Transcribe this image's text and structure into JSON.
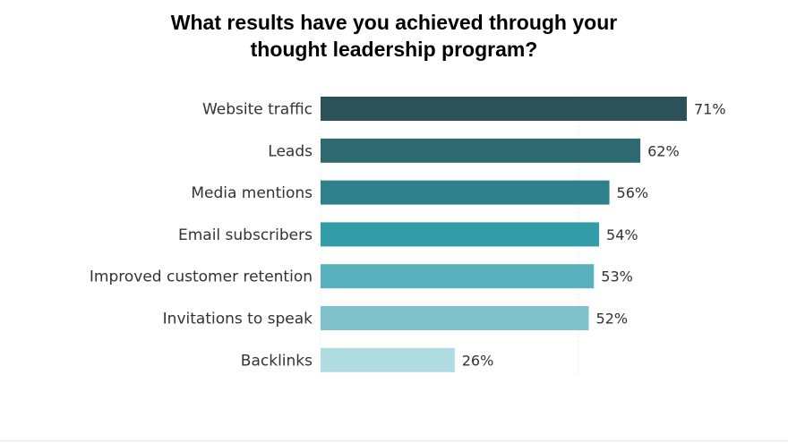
{
  "chart_data": {
    "type": "bar",
    "orientation": "horizontal",
    "title_lines": [
      "What results have you achieved through your",
      "thought leadership program?"
    ],
    "categories": [
      "Website traffic",
      "Leads",
      "Media mentions",
      "Email subscribers",
      "Improved customer retention",
      "Invitations to speak",
      "Backlinks"
    ],
    "values": [
      71,
      62,
      56,
      54,
      53,
      52,
      26
    ],
    "value_labels": [
      "71%",
      "62%",
      "56%",
      "54%",
      "53%",
      "52%",
      "26%"
    ],
    "colors": [
      "#2c5158",
      "#2e6970",
      "#2e808a",
      "#329ca8",
      "#58b1bc",
      "#7fc2cb",
      "#b0dbe0"
    ],
    "xlim": [
      0,
      100
    ],
    "gridlines": [
      0,
      50
    ],
    "xlabel": "",
    "ylabel": "",
    "legend": "none"
  }
}
